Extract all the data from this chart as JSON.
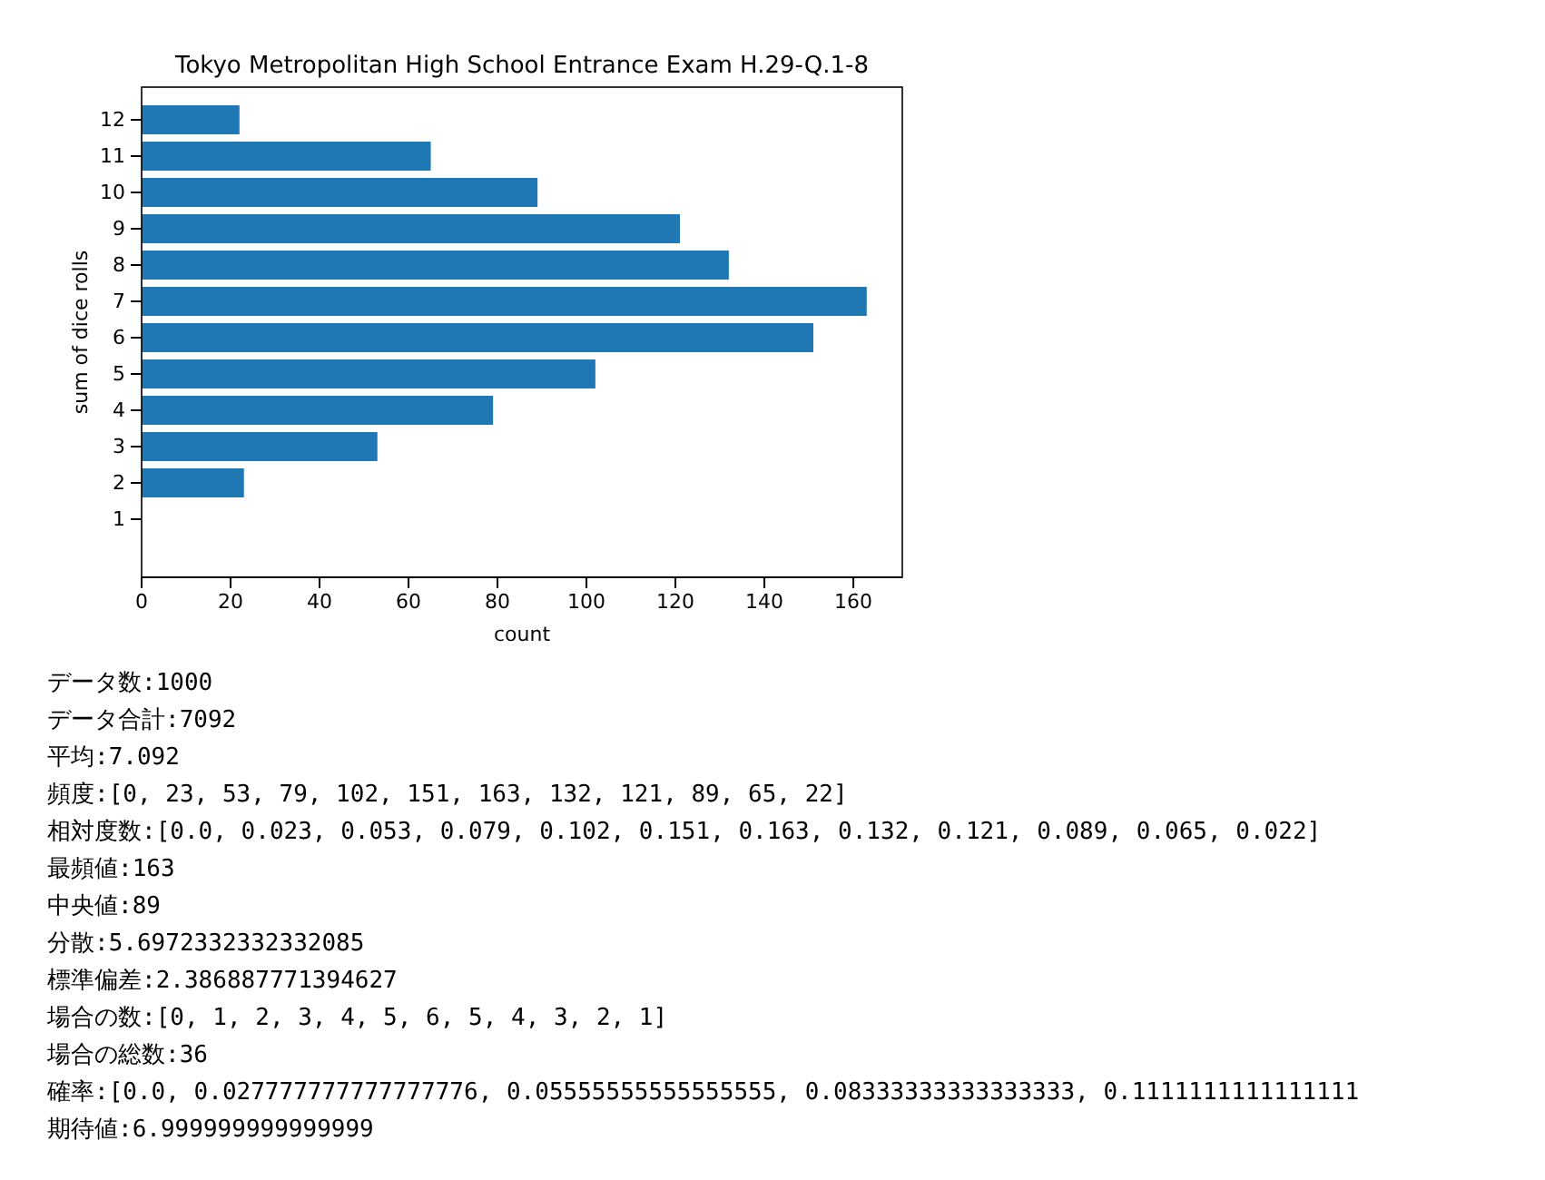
{
  "chart_data": {
    "type": "bar",
    "orientation": "horizontal",
    "title": "Tokyo Metropolitan High School Entrance Exam H.29-Q.1-8",
    "xlabel": "count",
    "ylabel": "sum of dice rolls",
    "categories": [
      "12",
      "11",
      "10",
      "9",
      "8",
      "7",
      "6",
      "5",
      "4",
      "3",
      "2",
      "1"
    ],
    "values": [
      22,
      65,
      89,
      121,
      132,
      163,
      151,
      102,
      79,
      53,
      23,
      0
    ],
    "color": "#1f77b4",
    "xlim": [
      0,
      171
    ],
    "xticks": [
      0,
      20,
      40,
      60,
      80,
      100,
      120,
      140,
      160
    ],
    "grid": false,
    "annotations": [
      "データ数:1000",
      "データ合計:7092",
      "平均:7.092",
      "頻度:[0, 23, 53, 79, 102, 151, 163, 132, 121, 89, 65, 22]",
      "相対度数:[0.0, 0.023, 0.053, 0.079, 0.102, 0.151, 0.163, 0.132, 0.121, 0.089, 0.065, 0.022]",
      "最頻値:163",
      "中央値:89",
      "分散:5.6972332332332085",
      "標準偏差:2.386887771394627",
      "場合の数:[0, 1, 2, 3, 4, 5, 6, 5, 4, 3, 2, 1]",
      "場合の総数:36",
      "確率:[0.0, 0.027777777777777776, 0.05555555555555555, 0.08333333333333333, 0.1111111111111111",
      "期待値:6.999999999999999"
    ]
  }
}
